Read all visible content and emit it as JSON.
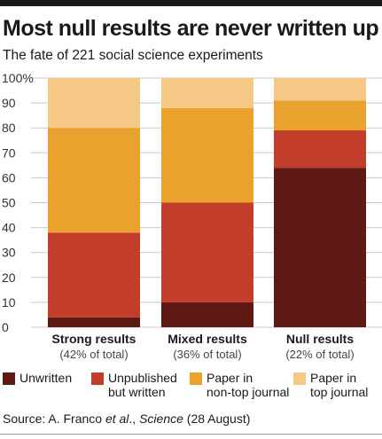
{
  "title": "Most null results are never written up",
  "subtitle": "The fate of 221 social science experiments",
  "source": {
    "prefix": "Source: A. Franco ",
    "etal": "et al",
    "mid": "., ",
    "journal": "Science",
    "suffix": " (28 August)"
  },
  "chart_data": {
    "type": "bar",
    "stacked": true,
    "categories": [
      "Strong results",
      "Mixed results",
      "Null results"
    ],
    "category_sublabels": [
      "(42% of total)",
      "(36% of total)",
      "(22% of total)"
    ],
    "ylim": [
      0,
      100
    ],
    "yticks": [
      0,
      10,
      20,
      30,
      40,
      50,
      60,
      70,
      80,
      90,
      100
    ],
    "ytick_labels": [
      "0",
      "10",
      "20",
      "30",
      "40",
      "50",
      "60",
      "70",
      "80",
      "90",
      "100%"
    ],
    "grid": true,
    "legend_position": "bottom",
    "series": [
      {
        "name": "Unwritten",
        "color": "#5e1a12",
        "values": [
          4,
          10,
          64
        ]
      },
      {
        "name": "Unpublished\nbut written",
        "color": "#c33e2a",
        "values": [
          34,
          40,
          15
        ]
      },
      {
        "name": "Paper in\nnon-top journal",
        "color": "#eaa22f",
        "values": [
          42,
          38,
          12
        ]
      },
      {
        "name": "Paper in\ntop journal",
        "color": "#f5c985",
        "values": [
          20,
          12,
          9
        ]
      }
    ]
  }
}
